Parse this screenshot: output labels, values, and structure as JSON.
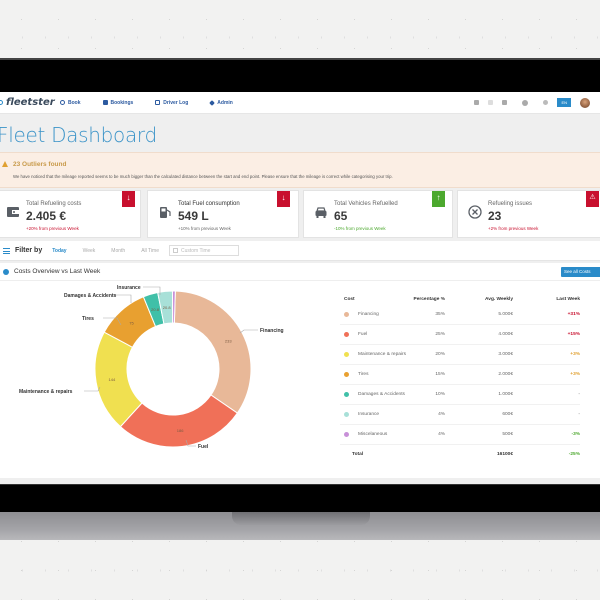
{
  "navbar": {
    "logo": "fleetster",
    "items": [
      {
        "label": "Book",
        "icon": "calendar-icon"
      },
      {
        "label": "Bookings",
        "icon": "bookings-icon"
      },
      {
        "label": "Driver Log",
        "icon": "logbook-icon"
      },
      {
        "label": "Admin",
        "icon": "admin-icon"
      }
    ],
    "right_icons": [
      "bell-icon",
      "phone-icon",
      "briefcase-icon",
      "help-icon",
      "globe-icon"
    ],
    "language": "EN"
  },
  "page": {
    "title": "Fleet Dashboard"
  },
  "alert": {
    "title": "23 Outliers found",
    "text": "We have noticed that the mileage reported seems to be much bigger than the calculated distance between the start and end point. Please ensure that the mileage is correct while categorising your trip."
  },
  "cards": [
    {
      "label": "Total Refueling costs",
      "value": "2.405 €",
      "delta": "+20% from previous Week",
      "delta_color": "#c8102e",
      "ribbon": "↓",
      "ribbon_color": "red",
      "icon": "wallet-icon"
    },
    {
      "label": "Total Fuel consumption",
      "value": "549 L",
      "delta": "+10% from previous Week",
      "delta_color": "#666666",
      "ribbon": "↓",
      "ribbon_color": "red",
      "icon": "fuel-pump-icon"
    },
    {
      "label": "Total Vehicles Refuelled",
      "value": "65",
      "delta": "-10% from previous Week",
      "delta_color": "#4ca82e",
      "ribbon": "↑",
      "ribbon_color": "green",
      "icon": "car-icon"
    },
    {
      "label": "Refueling issues",
      "value": "23",
      "delta": "+2% from previous Week",
      "delta_color": "#c8102e",
      "ribbon": "⚠",
      "ribbon_color": "red",
      "icon": "x-circle-icon"
    }
  ],
  "filter": {
    "label": "Filter by",
    "options": [
      "Today",
      "Week",
      "Month",
      "All Time"
    ],
    "active": "Today",
    "custom_placeholder": "Custom Time"
  },
  "costs_panel": {
    "title": "Costs Overview vs Last Week",
    "see_all": "See all Costs",
    "table": {
      "headers": [
        "Cost",
        "Percentage %",
        "Avg. Weekly",
        "Last Week"
      ],
      "rows": [
        {
          "name": "Financing",
          "pct": "35%",
          "avg": "5.000€",
          "last": "+31%",
          "last_color": "#c8102e",
          "color": "#e8b898"
        },
        {
          "name": "Fuel",
          "pct": "25%",
          "avg": "4.000€",
          "last": "+15%",
          "last_color": "#c8102e",
          "color": "#f07058"
        },
        {
          "name": "Maintenance & repairs",
          "pct": "20%",
          "avg": "3.000€",
          "last": "+3%",
          "last_color": "#e0a030",
          "color": "#f0e050"
        },
        {
          "name": "Tires",
          "pct": "15%",
          "avg": "2.000€",
          "last": "+3%",
          "last_color": "#e0a030",
          "color": "#e8a030"
        },
        {
          "name": "Damages & Accidents",
          "pct": "10%",
          "avg": "1.000€",
          "last": "-",
          "last_color": "#999999",
          "color": "#40c0a8"
        },
        {
          "name": "Insurance",
          "pct": "4%",
          "avg": "600€",
          "last": "-",
          "last_color": "#999999",
          "color": "#a8e0d8"
        },
        {
          "name": "Miscelaneous",
          "pct": "4%",
          "avg": "500€",
          "last": "-3%",
          "last_color": "#4ca82e",
          "color": "#c890d8"
        }
      ],
      "total": {
        "label": "Total",
        "avg": "16100€",
        "last": "-25%",
        "last_color": "#4ca82e"
      }
    }
  },
  "chart_data": {
    "type": "pie",
    "variant": "donut",
    "title": "Costs Overview vs Last Week",
    "categories": [
      "Financing",
      "Fuel",
      "Maintenance & repairs",
      "Tires",
      "Damages & Accidents",
      "Insurance",
      "Miscelaneous"
    ],
    "values": [
      233,
      186,
      144,
      75,
      20.8,
      20.8,
      4
    ],
    "value_labels": [
      "233",
      "186",
      "144",
      "75",
      "20.8",
      "20.8",
      ""
    ],
    "colors": [
      "#e8b898",
      "#f07058",
      "#f0e050",
      "#e8a030",
      "#40c0a8",
      "#a8e0d8",
      "#c890d8"
    ],
    "legend": "outside labels with leader lines"
  }
}
